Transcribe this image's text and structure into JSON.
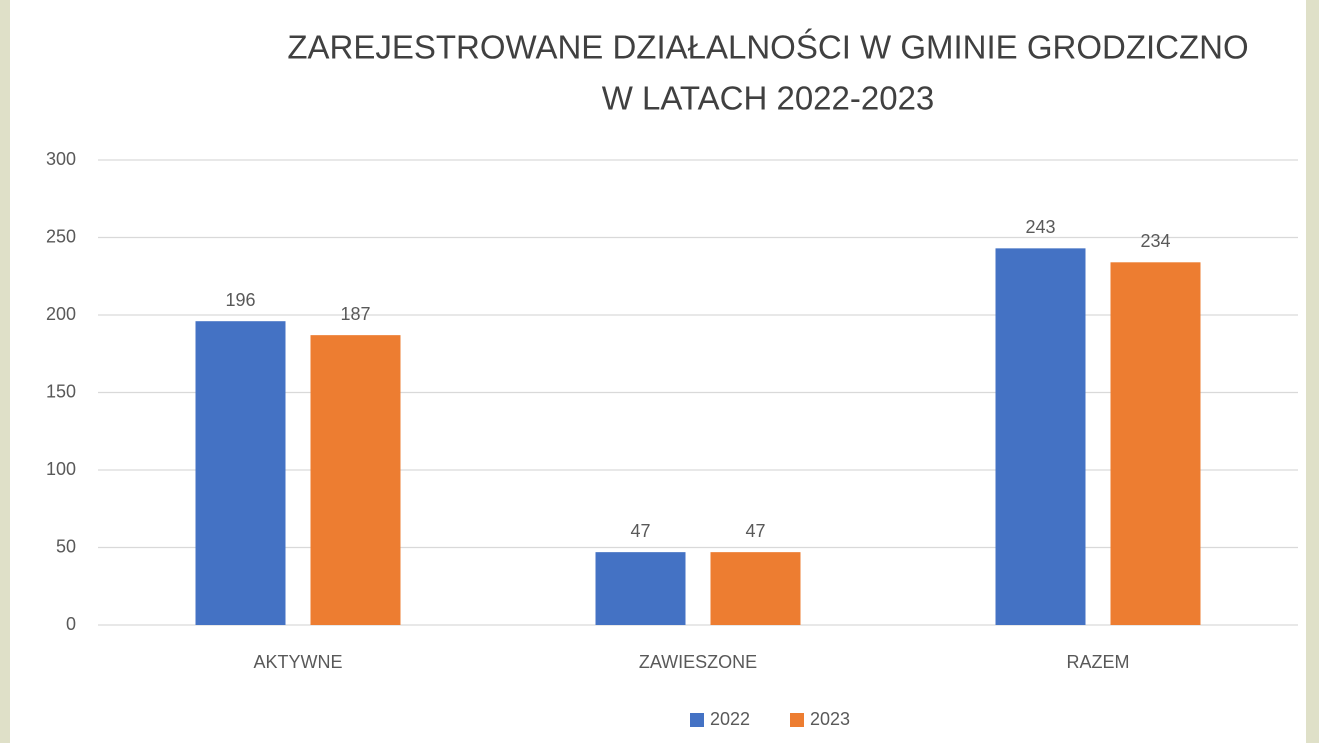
{
  "chart_data": {
    "type": "bar",
    "title": [
      "ZAREJESTROWANE DZIAŁALNOŚCI W GMINIE GRODZICZNO",
      "W LATACH 2022-2023"
    ],
    "categories": [
      "AKTYWNE",
      "ZAWIESZONE",
      "RAZEM"
    ],
    "series": [
      {
        "name": "2022",
        "color": "#4472c4",
        "values": [
          196,
          47,
          243
        ]
      },
      {
        "name": "2023",
        "color": "#ed7d31",
        "values": [
          187,
          47,
          234
        ]
      }
    ],
    "ylim": [
      0,
      300
    ],
    "yticks": [
      0,
      50,
      100,
      150,
      200,
      250,
      300
    ],
    "grid": true,
    "legend": "bottom"
  }
}
